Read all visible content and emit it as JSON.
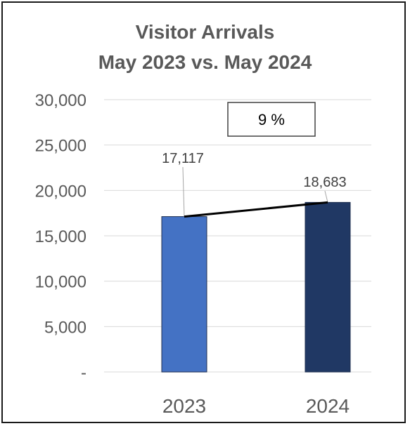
{
  "chart_data": {
    "type": "bar",
    "title": "Visitor Arrivals",
    "subtitle": "May 2023 vs. May 2024",
    "categories": [
      "2023",
      "2024"
    ],
    "values": [
      17117,
      18683
    ],
    "value_labels": [
      "17,117",
      "18,683"
    ],
    "ylim": [
      0,
      30000
    ],
    "y_ticks": [
      0,
      5000,
      10000,
      15000,
      20000,
      25000,
      30000
    ],
    "y_tick_labels": [
      "-",
      "5,000",
      "10,000",
      "15,000",
      "20,000",
      "25,000",
      "30,000"
    ],
    "grid": true,
    "legend": "none",
    "bar_colors": [
      "#4472c4",
      "#203864"
    ],
    "annotation": "9 %"
  }
}
